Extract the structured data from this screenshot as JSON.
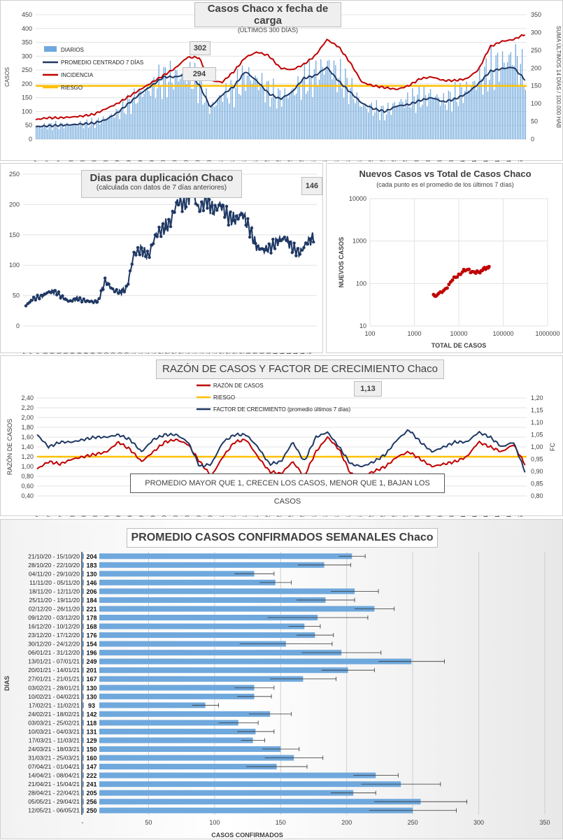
{
  "colors": {
    "diarios": "#6fa8dc",
    "promedio": "#1f3864",
    "incidencia": "#c00000",
    "riesgo": "#ffc000",
    "navy": "#1f3864",
    "red": "#c00000",
    "bar": "#6fa8dc"
  },
  "chart_data": [
    {
      "type": "bar+line",
      "title": "Casos  Chaco  x fecha de carga",
      "subtitle": "(ÚLTIMOS 300 DÍAS)",
      "ylabel": "CASOS",
      "y2label": "SUMA ÚLTIMOS 14 DÍAS / 100.000 HAB",
      "ylim": [
        0,
        450
      ],
      "y2lim": [
        0,
        350
      ],
      "yticks": [
        "0",
        "50",
        "100",
        "150",
        "200",
        "250",
        "300",
        "350",
        "400",
        "450"
      ],
      "y2ticks": [
        "0",
        "50",
        "100",
        "150",
        "200",
        "250",
        "300",
        "350"
      ],
      "xticks": [
        "17/7",
        "24/7",
        "31/7",
        "7/8",
        "14/8",
        "21/8",
        "28/8",
        "4/9",
        "11/9",
        "18/9",
        "25/9",
        "2/10",
        "9/10",
        "16/10",
        "23/10",
        "30/10",
        "6/11",
        "13/11",
        "20/11",
        "27/11",
        "4/12",
        "11/12",
        "18/12",
        "25/12",
        "1/1",
        "8/1",
        "15/1",
        "22/1",
        "29/1",
        "5/2",
        "12/2",
        "19/2",
        "26/2",
        "5/3",
        "12/3",
        "19/3",
        "26/3",
        "2/4",
        "9/4",
        "16/4",
        "23/4",
        "30/4",
        "7/5"
      ],
      "legend": [
        "DIARIOS",
        "PROMEDIO CENTRADO 7 DÍAS",
        "INCIDENCIA",
        "RIESGO"
      ],
      "annotations": [
        "302",
        "294"
      ],
      "riesgo": 150,
      "diarios_weekly": [
        45,
        48,
        50,
        52,
        55,
        58,
        75,
        95,
        130,
        165,
        190,
        215,
        225,
        240,
        195,
        110,
        160,
        175,
        230,
        210,
        170,
        150,
        170,
        210,
        230,
        270,
        225,
        180,
        120,
        110,
        95,
        130,
        140,
        150,
        160,
        135,
        155,
        180,
        210,
        250,
        270,
        300,
        230
      ],
      "promedio_weekly": [
        45,
        48,
        50,
        52,
        55,
        58,
        70,
        95,
        130,
        165,
        195,
        225,
        225,
        235,
        200,
        115,
        160,
        190,
        245,
        210,
        165,
        145,
        170,
        220,
        230,
        260,
        210,
        170,
        130,
        110,
        100,
        120,
        125,
        140,
        150,
        135,
        145,
        165,
        200,
        245,
        255,
        260,
        215
      ],
      "incidencia_weekly": [
        55,
        60,
        60,
        62,
        65,
        70,
        85,
        100,
        120,
        140,
        160,
        180,
        200,
        230,
        230,
        165,
        160,
        190,
        230,
        245,
        235,
        200,
        195,
        210,
        235,
        280,
        260,
        215,
        160,
        150,
        145,
        140,
        150,
        170,
        175,
        165,
        165,
        170,
        195,
        260,
        275,
        280,
        295
      ]
    },
    {
      "type": "line",
      "title": "Dias para duplicación Chaco",
      "subtitle": "(calculada con datos de 7 días anteriores)",
      "ylim": [
        0,
        250
      ],
      "yticks": [
        "0",
        "50",
        "100",
        "150",
        "200",
        "250"
      ],
      "xticks": [
        "17/7",
        "24/7",
        "31/7",
        "7/8",
        "14/8",
        "21/8",
        "28/8",
        "4/9",
        "11/9",
        "18/9",
        "25/9",
        "2/10",
        "9/10",
        "16/10",
        "23/10",
        "30/10",
        "6/11",
        "13/11",
        "20/11",
        "27/11",
        "4/12",
        "11/12",
        "18/12",
        "25/12",
        "1/1",
        "8/1",
        "15/1",
        "22/1",
        "29/1",
        "5/2",
        "12/2",
        "19/2",
        "26/2",
        "5/3",
        "12/3",
        "19/3",
        "26/3",
        "2/4",
        "9/4",
        "16/4",
        "23/4",
        "30/4",
        "7/5"
      ],
      "annotation": "146",
      "values_weekly": [
        33,
        45,
        48,
        55,
        57,
        48,
        40,
        45,
        42,
        40,
        40,
        75,
        60,
        55,
        62,
        120,
        125,
        115,
        150,
        160,
        170,
        205,
        200,
        225,
        190,
        210,
        190,
        200,
        180,
        175,
        185,
        160,
        130,
        125,
        130,
        140,
        145,
        128,
        120,
        138,
        146
      ]
    },
    {
      "type": "scatter",
      "title": "Nuevos Casos vs Total de Casos Chaco",
      "subtitle": "(cada punto es el promedio de los últimos 7 días)",
      "xlabel": "TOTAL DE CASOS",
      "ylabel": "NUEVOS CASOS",
      "xscale": "log",
      "yscale": "log",
      "xticks": [
        "100",
        "1000",
        "10000",
        "100000",
        "1000000"
      ],
      "yticks": [
        "10",
        "100",
        "1000",
        "10000"
      ],
      "points": [
        [
          2700,
          55
        ],
        [
          3000,
          50
        ],
        [
          3500,
          58
        ],
        [
          4200,
          62
        ],
        [
          5000,
          75
        ],
        [
          6000,
          95
        ],
        [
          7200,
          120
        ],
        [
          8500,
          140
        ],
        [
          10000,
          165
        ],
        [
          12000,
          185
        ],
        [
          14000,
          200
        ],
        [
          17000,
          215
        ],
        [
          20000,
          190
        ],
        [
          24000,
          175
        ],
        [
          28000,
          185
        ],
        [
          32000,
          200
        ],
        [
          36000,
          225
        ],
        [
          40000,
          215
        ],
        [
          44000,
          240
        ],
        [
          48000,
          250
        ]
      ]
    },
    {
      "type": "line",
      "title": "RAZÓN DE CASOS Y FACTOR DE CRECIMIENTO Chaco",
      "ylabel": "RAZÓN DE CASOS",
      "y2label": "FC",
      "ylim": [
        0.4,
        2.4
      ],
      "y2lim": [
        0.8,
        1.2
      ],
      "yticks": [
        "0,40",
        "0,60",
        "0,80",
        "1,00",
        "1,20",
        "1,40",
        "1,60",
        "1,80",
        "2,00",
        "2,20",
        "2,40"
      ],
      "y2ticks": [
        "0,80",
        "0,85",
        "0,90",
        "0,95",
        "1,00",
        "1,05",
        "1,10",
        "1,15",
        "1,20"
      ],
      "xticks": [
        "17/7",
        "24/7",
        "31/7",
        "7/8",
        "14/8",
        "21/8",
        "28/8",
        "4/9",
        "11/9",
        "18/9",
        "25/9",
        "2/10",
        "9/10",
        "16/10",
        "23/10",
        "30/10",
        "6/11",
        "13/11",
        "20/11",
        "27/11",
        "4/12",
        "11/12",
        "18/12",
        "25/12",
        "1/1",
        "8/1",
        "15/1",
        "22/1",
        "29/1",
        "5/2",
        "12/2",
        "19/2",
        "26/2",
        "5/3",
        "12/3",
        "19/3",
        "26/3",
        "2/4",
        "9/4",
        "16/4",
        "23/4",
        "30/4",
        "7/5"
      ],
      "legend": [
        "RAZÓN DE CASOS",
        "RIESGO",
        "FACTOR DE CRECIMIENTO (promedio últimos 7 días)"
      ],
      "annotation": "1,13",
      "note": "PROMEDIO MAYOR QUE 1, CRECEN LOS CASOS, MENOR QUE 1, BAJAN LOS CASOS",
      "riesgo": 1.2,
      "razon_weekly": [
        0.95,
        1.1,
        1.05,
        1.15,
        1.2,
        1.25,
        1.3,
        1.5,
        1.35,
        1.1,
        1.3,
        1.5,
        1.55,
        1.45,
        1.1,
        0.8,
        1.2,
        1.5,
        1.55,
        1.2,
        0.9,
        0.85,
        1.1,
        0.8,
        1.3,
        1.6,
        1.35,
        0.85,
        0.8,
        0.9,
        1.0,
        1.2,
        1.3,
        1.15,
        1.0,
        1.05,
        1.1,
        1.2,
        1.5,
        1.4,
        1.3,
        1.45,
        1.05
      ],
      "fc_weekly": [
        1.05,
        1.0,
        1.02,
        1.02,
        1.03,
        1.04,
        1.04,
        1.05,
        1.03,
        0.98,
        1.03,
        1.05,
        1.05,
        1.02,
        0.92,
        0.93,
        1.02,
        1.05,
        1.05,
        1.0,
        0.93,
        0.94,
        1.02,
        0.94,
        1.04,
        1.06,
        1.0,
        0.93,
        0.92,
        0.94,
        0.97,
        1.03,
        1.07,
        1.02,
        0.98,
        1.0,
        1.02,
        1.02,
        1.06,
        1.04,
        1.0,
        1.02,
        0.9
      ]
    },
    {
      "type": "bar",
      "orientation": "horizontal",
      "title": "PROMEDIO CASOS CONFIRMADOS SEMANALES Chaco",
      "xlabel": "CASOS CONFIRMADOS",
      "ylabel": "DIAS",
      "xlim": [
        0,
        350
      ],
      "xticks": [
        "-",
        "50",
        "100",
        "150",
        "200",
        "250",
        "300",
        "350"
      ],
      "categories": [
        "21/10/20 - 15/10/20",
        "28/10/20 - 22/10/20",
        "04/11/20 - 29/10/20",
        "11/11/20 - 05/11/20",
        "18/11/20 - 12/11/20",
        "25/11/20 - 19/11/20",
        "02/12/20 - 26/11/20",
        "09/12/20 - 03/12/20",
        "16/12/20 - 10/12/20",
        "23/12/20 - 17/12/20",
        "30/12/20 - 24/12/20",
        "06/01/21 - 31/12/20",
        "13/01/21 - 07/01/21",
        "20/01/21 - 14/01/21",
        "27/01/21 - 21/01/21",
        "03/02/21 - 28/01/21",
        "10/02/21 - 04/02/21",
        "17/02/21 - 11/02/21",
        "24/02/21 - 18/02/21",
        "03/03/21 - 25/02/21",
        "10/03/21 - 04/03/21",
        "17/03/21 - 11/03/21",
        "24/03/21 - 18/03/21",
        "31/03/21 - 25/03/21",
        "07/04/21 - 01/04/21",
        "14/04/21 - 08/04/21",
        "21/04/21 - 15/04/21",
        "28/04/21 - 22/04/21",
        "05/05/21 - 29/04/21",
        "12/05/21 - 06/05/21"
      ],
      "values": [
        204,
        183,
        130,
        146,
        206,
        184,
        221,
        178,
        168,
        176,
        154,
        196,
        249,
        201,
        167,
        130,
        130,
        93,
        142,
        118,
        131,
        129,
        150,
        160,
        147,
        222,
        241,
        205,
        256,
        250
      ],
      "errors": [
        10,
        20,
        15,
        12,
        18,
        22,
        15,
        38,
        12,
        14,
        35,
        30,
        25,
        20,
        25,
        15,
        13,
        10,
        16,
        15,
        14,
        9,
        14,
        22,
        23,
        17,
        30,
        17,
        35,
        33
      ]
    }
  ]
}
